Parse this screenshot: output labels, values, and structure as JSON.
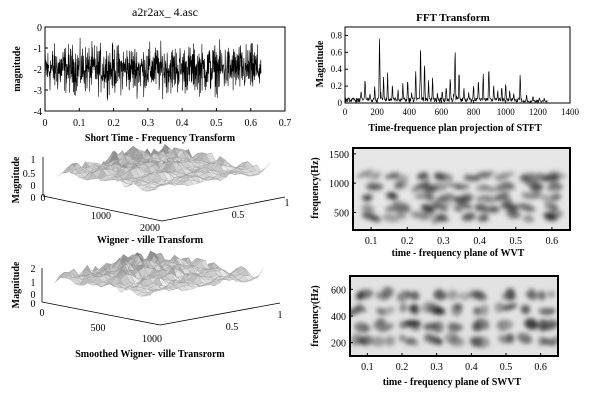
{
  "chart_data": [
    {
      "id": "signal",
      "type": "line",
      "title": "a2r2ax_ 4.asc",
      "xlabel": "Short Time - Frequency Transform",
      "ylabel": "magnitude",
      "xlim": [
        0,
        0.7
      ],
      "ylim": [
        -4,
        0
      ],
      "xticks": [
        "0",
        "0.1",
        "0.2",
        "0.3",
        "0.4",
        "0.5",
        "0.6",
        "0.7"
      ],
      "yticks": [
        "0",
        "-1",
        "-2",
        "-3",
        "-4"
      ],
      "data_range_x": [
        0,
        0.63
      ],
      "mean": -2.0,
      "spread": 0.55
    },
    {
      "id": "fft",
      "type": "line",
      "title": "FFT Transform",
      "xlabel": "Time-frequence plan projection of STFT",
      "ylabel": "Magnitude",
      "xlim": [
        0,
        1400
      ],
      "ylim": [
        0,
        0.9
      ],
      "xticks": [
        "0",
        "200",
        "400",
        "600",
        "800",
        "1000",
        "1200",
        "1400"
      ],
      "yticks": [
        "0",
        "0.2",
        "0.4",
        "0.6",
        "0.8"
      ],
      "data_range_x": [
        0,
        1260
      ],
      "peaks": [
        {
          "x": 100,
          "y": 0.15
        },
        {
          "x": 125,
          "y": 0.3
        },
        {
          "x": 155,
          "y": 0.12
        },
        {
          "x": 185,
          "y": 0.2
        },
        {
          "x": 215,
          "y": 0.83
        },
        {
          "x": 240,
          "y": 0.3
        },
        {
          "x": 265,
          "y": 0.35
        },
        {
          "x": 295,
          "y": 0.22
        },
        {
          "x": 330,
          "y": 0.15
        },
        {
          "x": 360,
          "y": 0.25
        },
        {
          "x": 390,
          "y": 0.3
        },
        {
          "x": 415,
          "y": 0.12
        },
        {
          "x": 440,
          "y": 0.4
        },
        {
          "x": 470,
          "y": 0.75
        },
        {
          "x": 495,
          "y": 0.5
        },
        {
          "x": 520,
          "y": 0.28
        },
        {
          "x": 545,
          "y": 0.3
        },
        {
          "x": 575,
          "y": 0.12
        },
        {
          "x": 605,
          "y": 0.15
        },
        {
          "x": 630,
          "y": 0.2
        },
        {
          "x": 655,
          "y": 0.32
        },
        {
          "x": 685,
          "y": 0.7
        },
        {
          "x": 710,
          "y": 0.4
        },
        {
          "x": 740,
          "y": 0.18
        },
        {
          "x": 770,
          "y": 0.12
        },
        {
          "x": 800,
          "y": 0.22
        },
        {
          "x": 830,
          "y": 0.3
        },
        {
          "x": 860,
          "y": 0.35
        },
        {
          "x": 895,
          "y": 0.45
        },
        {
          "x": 925,
          "y": 0.22
        },
        {
          "x": 950,
          "y": 0.15
        },
        {
          "x": 975,
          "y": 0.2
        },
        {
          "x": 1000,
          "y": 0.25
        },
        {
          "x": 1025,
          "y": 0.15
        },
        {
          "x": 1050,
          "y": 0.12
        },
        {
          "x": 1090,
          "y": 0.35
        },
        {
          "x": 1130,
          "y": 0.1
        },
        {
          "x": 1170,
          "y": 0.08
        },
        {
          "x": 1210,
          "y": 0.06
        },
        {
          "x": 1240,
          "y": 0.05
        }
      ]
    },
    {
      "id": "wvt3d",
      "type": "surface",
      "xlabel": "Wigner - ville Transform",
      "ylabel": "Magnitude",
      "zticks": [
        "1",
        "0.5",
        "0",
        "0"
      ],
      "freq_ticks": [
        "1000",
        "2000"
      ],
      "time_ticks": [
        "0.5",
        "1"
      ],
      "origin_label": "0"
    },
    {
      "id": "wvt_tf",
      "type": "heatmap",
      "xlabel": "time - frequency plane of WVT",
      "ylabel": "frequency(Hz)",
      "xlim": [
        0.05,
        0.65
      ],
      "ylim": [
        200,
        1600
      ],
      "xticks": [
        "0.1",
        "0.2",
        "0.3",
        "0.4",
        "0.5",
        "0.6"
      ],
      "yticks": [
        "500",
        "1000",
        "1500"
      ],
      "blob_time_centers": [
        0.1,
        0.175,
        0.25,
        0.3,
        0.36,
        0.42,
        0.48,
        0.54,
        0.6
      ],
      "blob_freq_centers": [
        420,
        580,
        760,
        950,
        1120
      ]
    },
    {
      "id": "swvt3d",
      "type": "surface",
      "xlabel": "Smoothed Wigner- ville Transrorm",
      "ylabel": "Magnitude",
      "zticks": [
        "2",
        "1",
        "0",
        "0"
      ],
      "freq_ticks": [
        "0",
        "500",
        "1000"
      ],
      "time_ticks": [
        "0.5",
        "1"
      ],
      "origin_label": "0"
    },
    {
      "id": "swvt_tf",
      "type": "heatmap",
      "xlabel": "time - frequency plane of SWVT",
      "ylabel": "frequency(Hz)",
      "xlim": [
        0.05,
        0.65
      ],
      "ylim": [
        100,
        700
      ],
      "xticks": [
        "0.1",
        "0.2",
        "0.3",
        "0.4",
        "0.5",
        "0.6"
      ],
      "yticks": [
        "200",
        "400",
        "600"
      ],
      "blob_time_centers": [
        0.08,
        0.15,
        0.22,
        0.29,
        0.36,
        0.43,
        0.5,
        0.57,
        0.62
      ],
      "blob_freq_centers": [
        220,
        330,
        450,
        560
      ]
    }
  ]
}
